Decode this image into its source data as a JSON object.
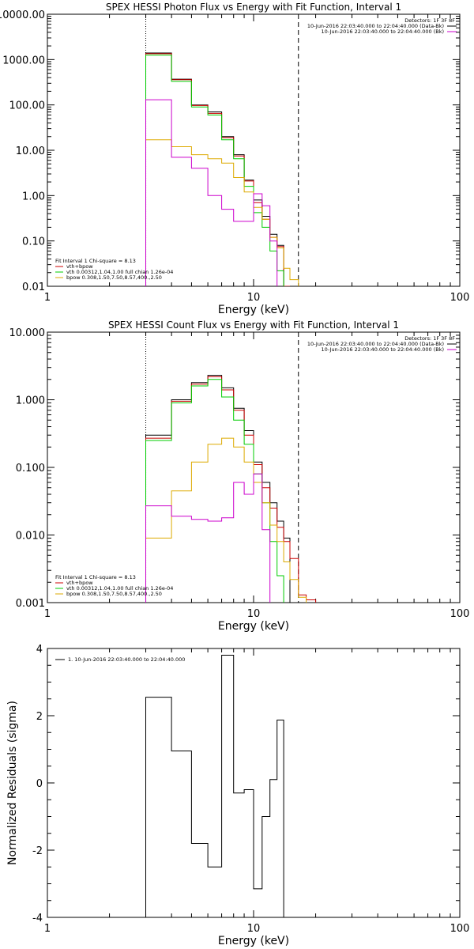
{
  "chart_data": [
    {
      "type": "line",
      "title": "SPEX HESSI Photon Flux vs Energy with Fit Function, Interval 1",
      "xlabel": "Energy (keV)",
      "ylabel": "",
      "x_scale": "log",
      "y_scale": "log",
      "xlim": [
        1,
        100
      ],
      "ylim": [
        0.01,
        10000
      ],
      "x_ticks": [
        {
          "v": 1,
          "label": "1"
        },
        {
          "v": 10,
          "label": "10"
        },
        {
          "v": 100,
          "label": "100"
        }
      ],
      "y_ticks": [
        {
          "v": 0.01,
          "label": "0.01"
        },
        {
          "v": 0.1,
          "label": "0.10"
        },
        {
          "v": 1,
          "label": "1.00"
        },
        {
          "v": 10,
          "label": "10.00"
        },
        {
          "v": 100,
          "label": "100.00"
        },
        {
          "v": 1000,
          "label": "1000.00"
        },
        {
          "v": 10000,
          "label": "10000.00"
        }
      ],
      "vlines": [
        {
          "x": 3,
          "style": "dotted"
        },
        {
          "x": 16.5,
          "style": "dashed"
        }
      ],
      "top_legend": {
        "detectors": "Detectors: 1F 3F 8F",
        "entries": [
          {
            "text": "10-Jun-2016 22:03:40.000 to 22:04:40.000 (Data-Bk)",
            "color": "#000000"
          },
          {
            "text": "10-Jun-2016 22:03:40.000 to 22:04:40.000 (Bk)",
            "color": "#cc00cc"
          }
        ]
      },
      "bottom_legend": {
        "header": "Fit Interval 1   Chi-square = 8.13",
        "entries": [
          {
            "text": "vth+bpow",
            "color": "#cc0000"
          },
          {
            "text": "vth 0.00312,1.04,1.00  full chian 1.26e-04",
            "color": "#00cc00"
          },
          {
            "text": "bpow 0.308,1.50,7.50,8.57,400.,2.50",
            "color": "#ddaa00"
          }
        ]
      },
      "edges": [
        3,
        4,
        5,
        6,
        7,
        8,
        9,
        10,
        11,
        12,
        13,
        14,
        15,
        16.5,
        18,
        20
      ],
      "series": [
        {
          "color": "#000000",
          "values": [
            1400,
            370,
            100,
            70,
            20,
            8,
            2.2,
            0.8,
            0.35,
            0.14,
            0.08,
            null,
            null,
            null,
            null
          ]
        },
        {
          "color": "#cc0000",
          "values": [
            1350,
            360,
            97,
            65,
            19,
            7.5,
            2.1,
            0.7,
            0.3,
            0.12,
            0.075,
            0.01,
            null,
            null,
            null
          ]
        },
        {
          "color": "#00cc00",
          "values": [
            1250,
            330,
            90,
            60,
            17,
            6.5,
            1.6,
            0.42,
            0.2,
            0.06,
            0.022,
            null,
            null,
            null,
            null
          ]
        },
        {
          "color": "#ddaa00",
          "values": [
            17,
            12,
            8,
            6.5,
            5.2,
            2.5,
            1.2,
            0.55,
            0.3,
            0.12,
            0.07,
            0.025,
            0.014,
            null,
            null
          ]
        },
        {
          "color": "#cc00cc",
          "values": [
            130,
            7,
            4,
            1,
            0.5,
            0.27,
            0.27,
            1.1,
            0.6,
            0.1,
            null,
            null,
            null,
            null,
            null
          ]
        }
      ]
    },
    {
      "type": "line",
      "title": "SPEX HESSI Count Flux vs Energy with Fit Function, Interval 1",
      "xlabel": "Energy (keV)",
      "ylabel": "",
      "x_scale": "log",
      "y_scale": "log",
      "xlim": [
        1,
        100
      ],
      "ylim": [
        0.001,
        10
      ],
      "x_ticks": [
        {
          "v": 1,
          "label": "1"
        },
        {
          "v": 10,
          "label": "10"
        },
        {
          "v": 100,
          "label": "100"
        }
      ],
      "y_ticks": [
        {
          "v": 0.001,
          "label": "0.001"
        },
        {
          "v": 0.01,
          "label": "0.010"
        },
        {
          "v": 0.1,
          "label": "0.100"
        },
        {
          "v": 1,
          "label": "1.000"
        },
        {
          "v": 10,
          "label": "10.000"
        }
      ],
      "vlines": [
        {
          "x": 3,
          "style": "dotted"
        },
        {
          "x": 16.5,
          "style": "dashed"
        }
      ],
      "top_legend": {
        "detectors": "Detectors: 1F 3F 8F",
        "entries": [
          {
            "text": "10-Jun-2016 22:03:40.000 to 22:04:40.000 (Data-Bk)",
            "color": "#000000"
          },
          {
            "text": "10-Jun-2016 22:03:40.000 to 22:04:40.000 (Bk)",
            "color": "#cc00cc"
          }
        ]
      },
      "bottom_legend": {
        "header": "Fit Interval 1   Chi-square = 8.13",
        "entries": [
          {
            "text": "vth+bpow",
            "color": "#cc0000"
          },
          {
            "text": "vth 0.00312,1.04,1.00  full chian 1.26e-04",
            "color": "#00cc00"
          },
          {
            "text": "bpow 0.308,1.50,7.50,8.57,400.,2.50",
            "color": "#ddaa00"
          }
        ]
      },
      "edges": [
        3,
        4,
        5,
        6,
        7,
        8,
        9,
        10,
        11,
        12,
        13,
        14,
        15,
        16.5,
        18,
        20
      ],
      "series": [
        {
          "color": "#000000",
          "values": [
            0.3,
            1.0,
            1.8,
            2.3,
            1.5,
            0.75,
            0.35,
            0.12,
            0.06,
            0.03,
            0.016,
            0.009,
            null,
            null,
            null
          ]
        },
        {
          "color": "#cc0000",
          "values": [
            0.27,
            0.95,
            1.7,
            2.2,
            1.4,
            0.7,
            0.3,
            0.11,
            0.05,
            0.025,
            0.013,
            0.008,
            0.0045,
            0.0013,
            0.0011
          ]
        },
        {
          "color": "#00cc00",
          "values": [
            0.25,
            0.9,
            1.6,
            2.0,
            1.1,
            0.5,
            0.22,
            0.08,
            0.03,
            0.008,
            0.0025,
            null,
            null,
            null,
            null
          ]
        },
        {
          "color": "#ddaa00",
          "values": [
            0.009,
            0.045,
            0.12,
            0.22,
            0.27,
            0.2,
            0.12,
            0.06,
            0.03,
            0.014,
            0.008,
            0.004,
            0.0022,
            0.0012,
            null
          ]
        },
        {
          "color": "#cc00cc",
          "values": [
            0.027,
            0.019,
            0.017,
            0.016,
            0.018,
            0.06,
            0.04,
            0.08,
            0.012,
            null,
            null,
            null,
            null,
            null,
            null
          ]
        }
      ]
    },
    {
      "type": "line",
      "title": "",
      "xlabel": "Energy (keV)",
      "ylabel": "Normalized Residuals (sigma)",
      "x_scale": "log",
      "y_scale": "linear",
      "xlim": [
        1,
        100
      ],
      "ylim": [
        -4,
        4
      ],
      "x_ticks": [
        {
          "v": 1,
          "label": "1"
        },
        {
          "v": 10,
          "label": "10"
        },
        {
          "v": 100,
          "label": "100"
        }
      ],
      "y_ticks": [
        {
          "v": -4,
          "label": "-4"
        },
        {
          "v": -2,
          "label": "-2"
        },
        {
          "v": 0,
          "label": "0"
        },
        {
          "v": 2,
          "label": "2"
        },
        {
          "v": 4,
          "label": "4"
        }
      ],
      "legend": [
        {
          "text": "1. 10-Jun-2016 22:03:40.000 to 22:04:40.000",
          "color": "#000000"
        }
      ],
      "edges": [
        3,
        4,
        5,
        6,
        7,
        8,
        9,
        10,
        11,
        12,
        13,
        14,
        15,
        16.5
      ],
      "series": [
        {
          "color": "#000000",
          "values": [
            2.55,
            0.95,
            -1.8,
            -2.5,
            3.8,
            -0.3,
            -0.2,
            -3.15,
            -1.0,
            0.1,
            1.87
          ]
        }
      ]
    }
  ]
}
